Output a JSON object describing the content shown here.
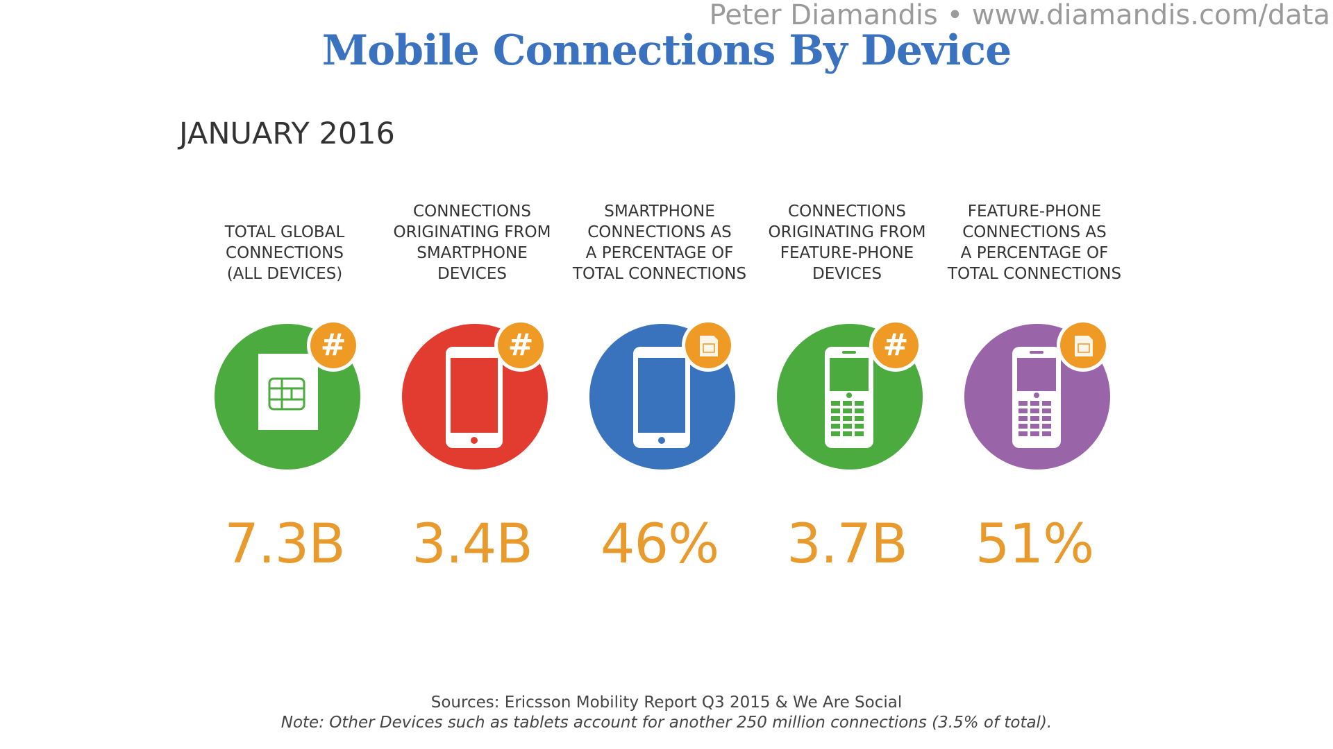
{
  "attribution": "Peter Diamandis  •  www.diamandis.com/data",
  "title": "Mobile Connections By Device",
  "subtitle": "JANUARY 2016",
  "chart_data": {
    "type": "table",
    "period": "JANUARY 2016",
    "items": [
      {
        "label": "TOTAL GLOBAL\nCONNECTIONS\n(ALL DEVICES)",
        "value": "7.3B",
        "numeric_value": 7.3,
        "unit": "billion",
        "icon": "sim-card-icon",
        "badge": "hash-badge-icon",
        "circle_color": "#4bab3f"
      },
      {
        "label": "CONNECTIONS\nORIGINATING FROM\nSMARTPHONE\nDEVICES",
        "value": "3.4B",
        "numeric_value": 3.4,
        "unit": "billion",
        "icon": "smartphone-icon",
        "badge": "hash-badge-icon",
        "circle_color": "#e23b30"
      },
      {
        "label": "SMARTPHONE\nCONNECTIONS AS\nA PERCENTAGE OF\nTOTAL CONNECTIONS",
        "value": "46%",
        "numeric_value": 46,
        "unit": "percent",
        "icon": "smartphone-icon",
        "badge": "sim-badge-icon",
        "circle_color": "#3a73bd"
      },
      {
        "label": "CONNECTIONS\nORIGINATING FROM\nFEATURE-PHONE\nDEVICES",
        "value": "3.7B",
        "numeric_value": 3.7,
        "unit": "billion",
        "icon": "feature-phone-icon",
        "badge": "hash-badge-icon",
        "circle_color": "#4bab3f"
      },
      {
        "label": "FEATURE-PHONE\nCONNECTIONS AS\nA PERCENTAGE OF\nTOTAL CONNECTIONS",
        "value": "51%",
        "numeric_value": 51,
        "unit": "percent",
        "icon": "feature-phone-icon",
        "badge": "sim-badge-icon",
        "circle_color": "#9a64a8"
      }
    ]
  },
  "colors": {
    "title": "#3a72c0",
    "value": "#e99a2c",
    "badge": "#ee9a24",
    "text": "#333333"
  },
  "footer": {
    "sources": "Sources: Ericsson Mobility Report Q3 2015 & We Are Social",
    "note": "Note: Other Devices such as tablets account for another 250 million connections (3.5% of total)."
  }
}
